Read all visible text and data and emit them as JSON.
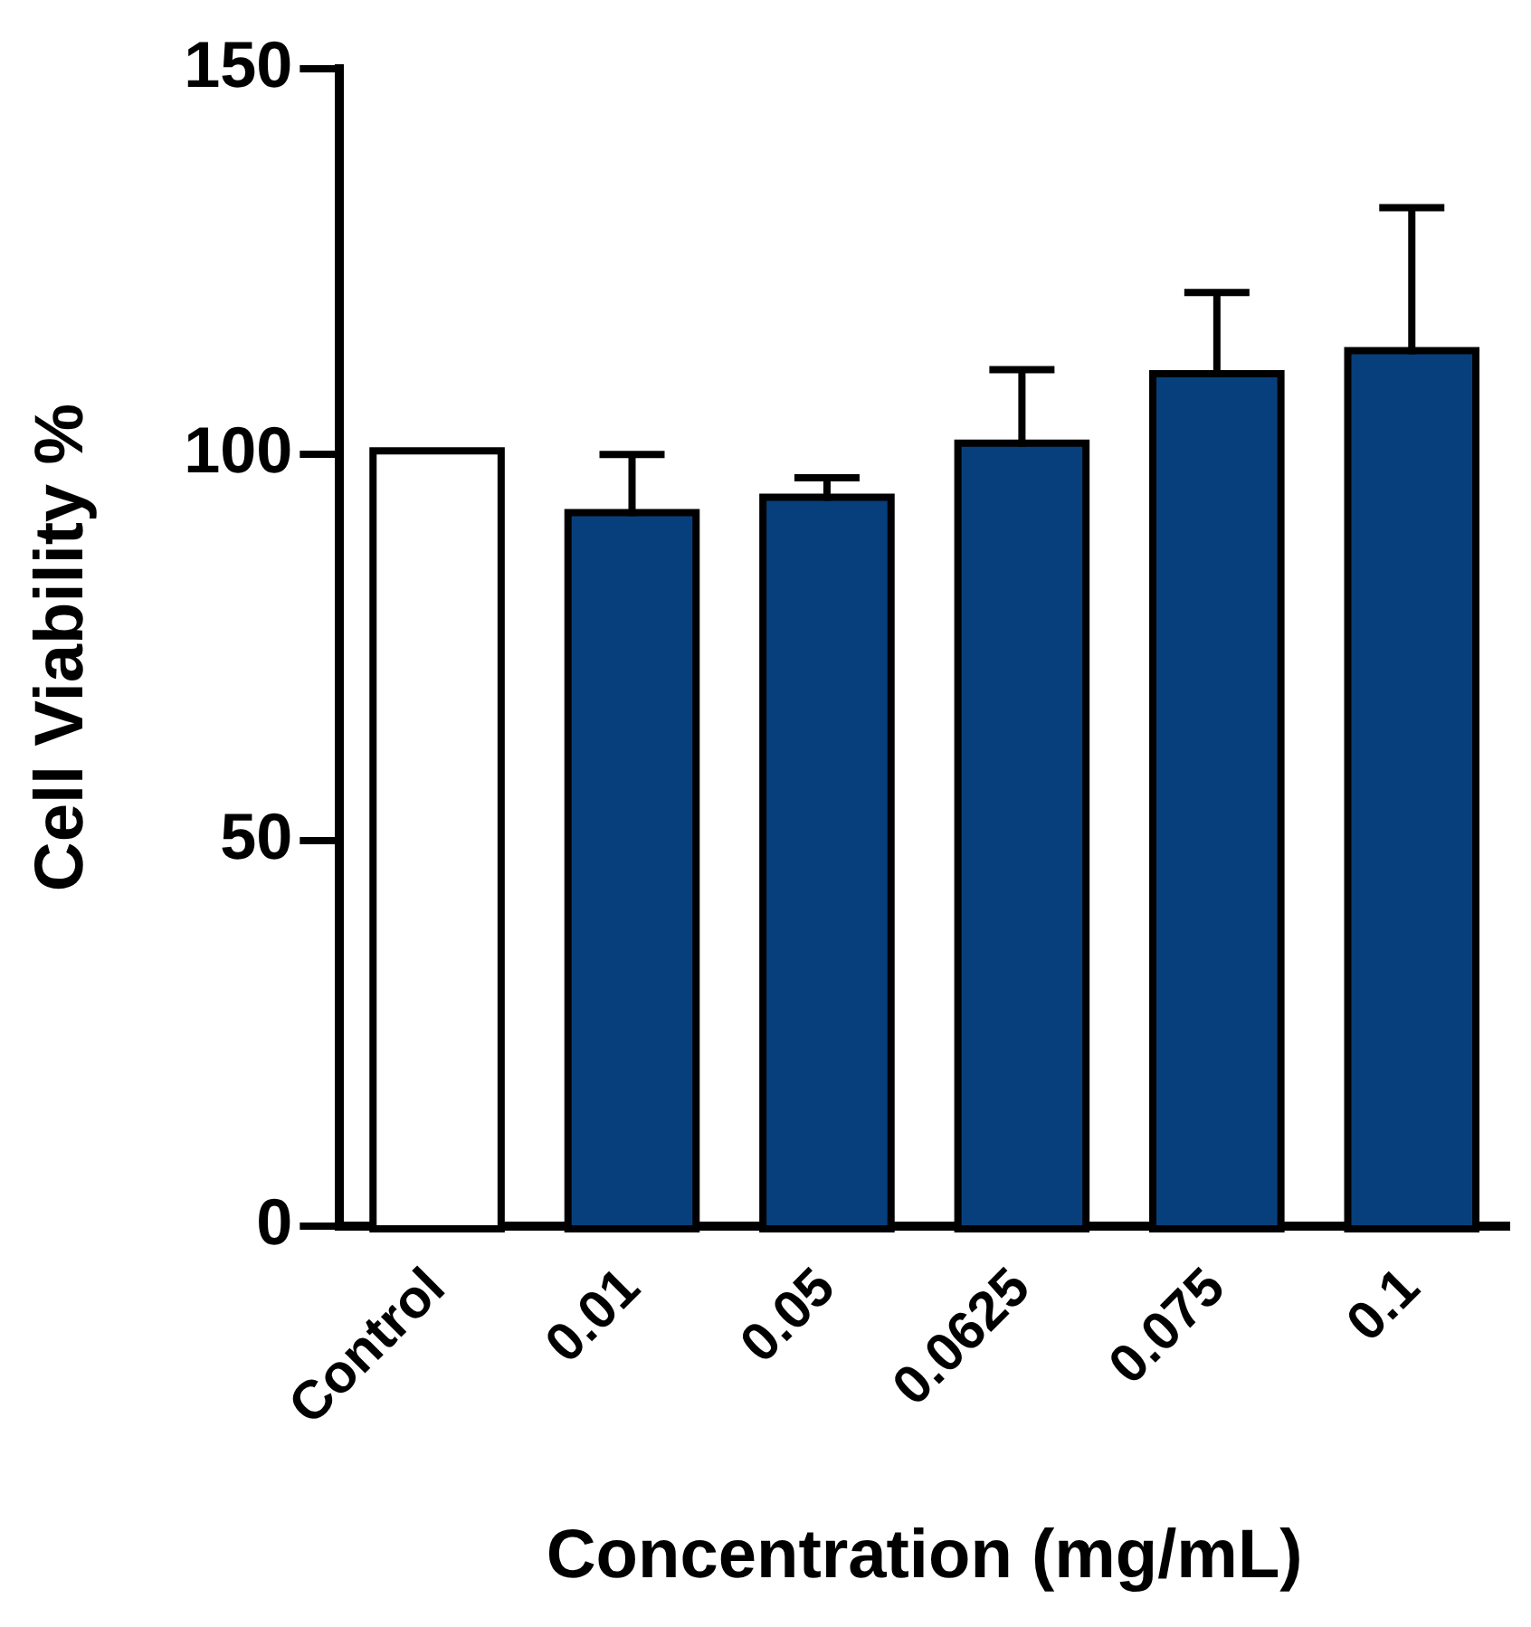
{
  "chart_data": {
    "type": "bar",
    "xlabel": "Concentration (mg/mL)",
    "ylabel": "Cell Viability %",
    "categories": [
      "Control",
      "0.01",
      "0.05",
      "0.0625",
      "0.075",
      "0.1"
    ],
    "values": [
      100,
      92,
      94,
      101,
      110,
      113
    ],
    "colors": [
      "#ffffff",
      "#073f7d",
      "#073f7d",
      "#073f7d",
      "#073f7d",
      "#073f7d"
    ],
    "errors": [
      null,
      [
        92,
        100
      ],
      [
        94,
        97
      ],
      [
        101,
        111
      ],
      [
        110,
        121
      ],
      [
        113,
        132
      ]
    ],
    "ylim": [
      0,
      150
    ],
    "yticks": [
      0,
      50,
      100,
      150
    ],
    "grid": false,
    "legend": false
  }
}
